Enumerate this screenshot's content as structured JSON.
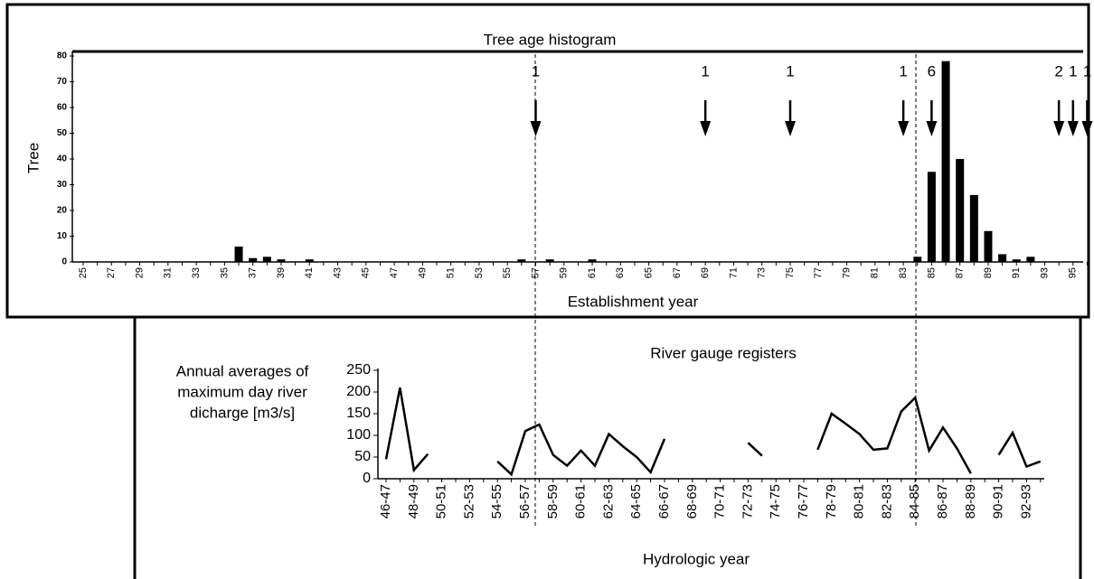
{
  "chart_data": [
    {
      "type": "bar",
      "title": "Tree age histogram",
      "xlabel": "Establishment year",
      "ylabel": "Tree",
      "categories": [
        "25",
        null,
        "27",
        null,
        "29",
        null,
        "31",
        null,
        "33",
        null,
        "35",
        null,
        "37",
        null,
        "39",
        null,
        "41",
        null,
        "43",
        null,
        "45",
        null,
        "47",
        null,
        "49",
        null,
        "51",
        null,
        "53",
        null,
        "55",
        null,
        "57",
        null,
        "59",
        null,
        "61",
        null,
        "63",
        null,
        "65",
        null,
        "67",
        null,
        "69",
        null,
        "71",
        null,
        "73",
        null,
        "75",
        null,
        "77",
        null,
        "79",
        null,
        "81",
        null,
        "83",
        null,
        "85",
        null,
        "87",
        null,
        "89",
        null,
        "91",
        null,
        "93",
        null,
        "95",
        null
      ],
      "values": [
        0,
        0,
        0,
        0,
        0,
        0,
        0,
        0,
        0,
        0,
        0,
        6,
        1.5,
        2,
        1,
        0,
        1,
        0,
        0,
        0,
        0,
        0,
        0,
        0,
        0,
        0,
        0,
        0,
        0,
        0,
        0,
        1,
        0,
        1,
        0,
        0,
        1,
        0,
        0,
        0,
        0,
        0,
        0,
        0,
        0,
        0,
        0,
        0,
        0,
        0,
        0,
        0,
        0,
        0,
        0,
        0,
        0,
        0,
        0,
        2,
        35,
        78,
        40,
        26,
        12,
        3,
        1,
        2,
        0,
        0,
        0,
        0
      ],
      "arrow_labels": [
        null,
        null,
        null,
        null,
        null,
        null,
        null,
        null,
        null,
        null,
        null,
        null,
        null,
        null,
        null,
        null,
        null,
        null,
        null,
        null,
        null,
        null,
        null,
        null,
        null,
        null,
        null,
        null,
        null,
        null,
        null,
        null,
        "1",
        null,
        null,
        null,
        null,
        null,
        null,
        null,
        null,
        null,
        null,
        null,
        "1",
        null,
        null,
        null,
        null,
        null,
        "1",
        null,
        null,
        null,
        null,
        null,
        null,
        null,
        "1",
        null,
        "6",
        null,
        null,
        null,
        null,
        null,
        null,
        null,
        null,
        "2",
        "1",
        "1"
      ],
      "color": "#000000",
      "ylim": [
        0,
        80
      ],
      "yticks": [
        0,
        10,
        20,
        30,
        40,
        50,
        60,
        70,
        80
      ]
    },
    {
      "type": "line",
      "title": "River gauge registers",
      "xlabel": "Hydrologic year",
      "ylabel": [
        "Annual averages of",
        "maximum day river",
        "dicharge [m3/s]"
      ],
      "categories": [
        "46-47",
        null,
        "48-49",
        null,
        "50-51",
        null,
        "52-53",
        null,
        "54-55",
        null,
        "56-57",
        null,
        "58-59",
        null,
        "60-61",
        null,
        "62-63",
        null,
        "64-65",
        null,
        "66-67",
        null,
        "68-69",
        null,
        "70-71",
        null,
        "72-73",
        null,
        "74-75",
        null,
        "76-77",
        null,
        "78-79",
        null,
        "80-81",
        null,
        "82-83",
        null,
        "84-85",
        null,
        "86-87",
        null,
        "88-89",
        null,
        "90-91",
        null,
        "92-93",
        null
      ],
      "values": [
        45,
        210,
        20,
        57,
        null,
        null,
        null,
        null,
        40,
        10,
        110,
        125,
        55,
        30,
        65,
        30,
        103,
        75,
        50,
        15,
        92,
        null,
        null,
        null,
        null,
        null,
        83,
        53,
        null,
        null,
        null,
        67,
        150,
        127,
        103,
        67,
        70,
        155,
        187,
        65,
        118,
        70,
        12,
        null,
        55,
        106,
        28,
        40
      ],
      "color": "#000000",
      "ylim": [
        0,
        250
      ],
      "yticks": [
        0,
        50,
        100,
        150,
        200,
        250
      ]
    }
  ]
}
